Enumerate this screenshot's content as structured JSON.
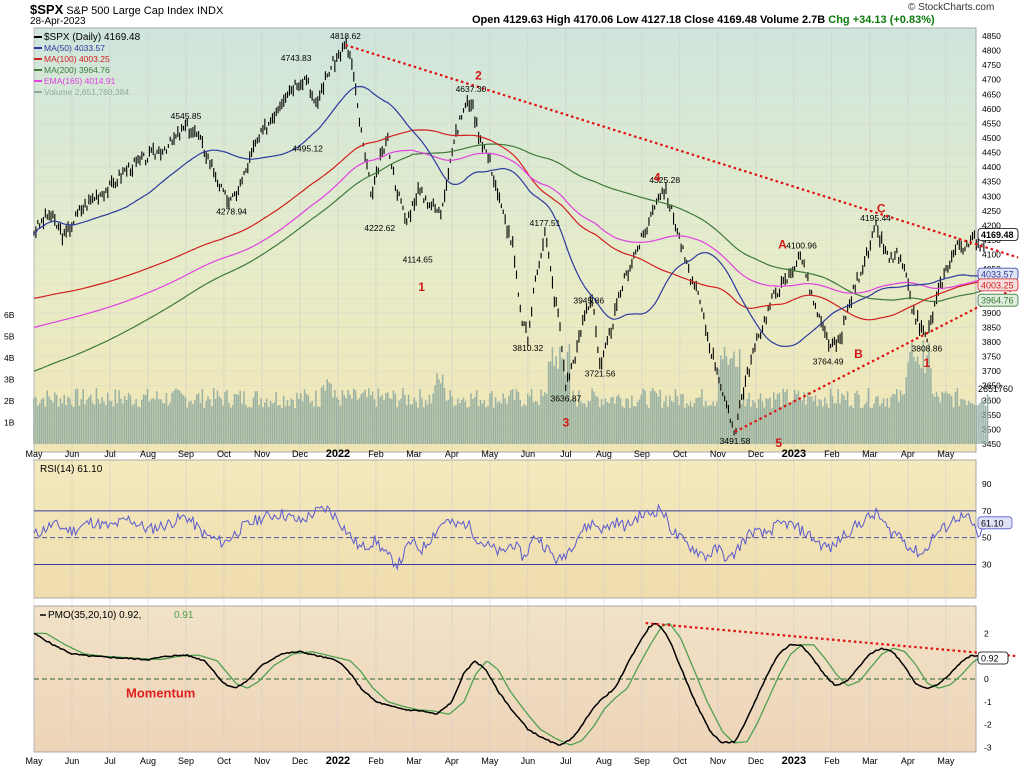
{
  "header": {
    "symbol": "$SPX",
    "name": "S&P 500 Large Cap Index",
    "exchange": "INDX",
    "date": "28-Apr-2023",
    "ohlc": "Open 4129.63  High 4170.06  Low 4127.18  Close 4169.48  Volume 2.7B",
    "chg": "Chg +34.13 (+0.83%)",
    "watermark": "© StockCharts.com"
  },
  "colors": {
    "price_bg": "#dbe9e2",
    "rsi_bg": "#f3e9bd",
    "pmo_bg": "#f0ddc6",
    "price": "#000000",
    "ma50": "#2b3a9e",
    "ma100": "#d21f1f",
    "ma200": "#3e7a3a",
    "ema165": "#e040e0",
    "volume": "#8faba0",
    "trendline": "#e01010",
    "rsi_line": "#5a5ad0",
    "pmo_signal": "#4fa14f",
    "wave_label": "#d01818"
  },
  "chart_data": [
    {
      "type": "line",
      "panel": "price",
      "title": "$SPX S&P 500 Large Cap Index INDX (Daily)",
      "legend": [
        {
          "label": "$SPX (Daily) 4169.48",
          "color": "#000000"
        },
        {
          "label": "MA(50) 4033.57",
          "color": "#2b3a9e"
        },
        {
          "label": "MA(100) 4003.25",
          "color": "#d21f1f"
        },
        {
          "label": "MA(200) 3964.76",
          "color": "#3e7a3a"
        },
        {
          "label": "EMA(165) 4014.91",
          "color": "#e040e0"
        },
        {
          "label": "Volume 2,651,760,384",
          "color": "#8faba0"
        }
      ],
      "x_months": [
        "May",
        "Jun",
        "Jul",
        "Aug",
        "Sep",
        "Oct",
        "Nov",
        "Dec",
        "2022",
        "Feb",
        "Mar",
        "Apr",
        "May",
        "Jun",
        "Jul",
        "Aug",
        "Sep",
        "Oct",
        "Nov",
        "Dec",
        "2023",
        "Feb",
        "Mar",
        "Apr",
        "May"
      ],
      "bold_months": [
        "2022",
        "2023"
      ],
      "ylim": [
        3450,
        4850
      ],
      "yticks": [
        3450,
        3500,
        3550,
        3600,
        3650,
        3700,
        3750,
        3800,
        3850,
        3900,
        3950,
        4000,
        4050,
        4100,
        4150,
        4200,
        4250,
        4300,
        4350,
        4400,
        4450,
        4500,
        4550,
        4600,
        4650,
        4700,
        4750,
        4800,
        4850
      ],
      "volume_ticks": [
        "1B",
        "2B",
        "3B",
        "4B",
        "5B",
        "6B"
      ],
      "volume_last": "2651760",
      "price_keypoints": [
        [
          0,
          4180
        ],
        [
          0.4,
          4240
        ],
        [
          0.8,
          4160
        ],
        [
          1.2,
          4250
        ],
        [
          1.6,
          4300
        ],
        [
          2.0,
          4330
        ],
        [
          2.4,
          4390
        ],
        [
          2.8,
          4420
        ],
        [
          3.2,
          4450
        ],
        [
          3.6,
          4480
        ],
        [
          4.0,
          4540
        ],
        [
          4.3,
          4510
        ],
        [
          4.7,
          4400
        ],
        [
          5.0,
          4300
        ],
        [
          5.2,
          4280
        ],
        [
          5.5,
          4360
        ],
        [
          5.8,
          4470
        ],
        [
          6.3,
          4580
        ],
        [
          6.6,
          4650
        ],
        [
          6.9,
          4690
        ],
        [
          7.2,
          4710
        ],
        [
          7.4,
          4600
        ],
        [
          7.6,
          4680
        ],
        [
          7.8,
          4740
        ],
        [
          8.0,
          4780
        ],
        [
          8.2,
          4819
        ],
        [
          8.35,
          4770
        ],
        [
          8.5,
          4620
        ],
        [
          8.7,
          4440
        ],
        [
          8.9,
          4300
        ],
        [
          9.1,
          4420
        ],
        [
          9.3,
          4500
        ],
        [
          9.5,
          4350
        ],
        [
          9.8,
          4210
        ],
        [
          10.1,
          4320
        ],
        [
          10.4,
          4280
        ],
        [
          10.7,
          4240
        ],
        [
          11.0,
          4460
        ],
        [
          11.3,
          4600
        ],
        [
          11.5,
          4630
        ],
        [
          11.7,
          4520
        ],
        [
          12.0,
          4420
        ],
        [
          12.3,
          4260
        ],
        [
          12.6,
          4130
        ],
        [
          12.8,
          3900
        ],
        [
          13.0,
          3810
        ],
        [
          13.2,
          4020
        ],
        [
          13.45,
          4178
        ],
        [
          13.7,
          3950
        ],
        [
          13.8,
          3900
        ],
        [
          14.0,
          3650
        ],
        [
          14.3,
          3780
        ],
        [
          14.5,
          3900
        ],
        [
          14.7,
          3960
        ],
        [
          14.9,
          3700
        ],
        [
          15.2,
          3850
        ],
        [
          15.5,
          4000
        ],
        [
          15.8,
          4100
        ],
        [
          16.1,
          4180
        ],
        [
          16.4,
          4300
        ],
        [
          16.6,
          4325
        ],
        [
          16.9,
          4200
        ],
        [
          17.2,
          4050
        ],
        [
          17.5,
          3950
        ],
        [
          17.8,
          3780
        ],
        [
          18.0,
          3700
        ],
        [
          18.2,
          3580
        ],
        [
          18.45,
          3492
        ],
        [
          18.6,
          3600
        ],
        [
          18.9,
          3750
        ],
        [
          19.1,
          3830
        ],
        [
          19.3,
          3900
        ],
        [
          19.5,
          3970
        ],
        [
          19.8,
          4010
        ],
        [
          20.0,
          4060
        ],
        [
          20.2,
          4101
        ],
        [
          20.4,
          3990
        ],
        [
          20.6,
          3900
        ],
        [
          20.8,
          3830
        ],
        [
          21.0,
          3780
        ],
        [
          21.2,
          3800
        ],
        [
          21.4,
          3900
        ],
        [
          21.6,
          3990
        ],
        [
          21.8,
          4060
        ],
        [
          22.0,
          4120
        ],
        [
          22.15,
          4195
        ],
        [
          22.35,
          4130
        ],
        [
          22.5,
          4080
        ],
        [
          22.7,
          4100
        ],
        [
          22.9,
          4050
        ],
        [
          23.1,
          3920
        ],
        [
          23.3,
          3860
        ],
        [
          23.5,
          3810
        ],
        [
          23.7,
          3920
        ],
        [
          23.9,
          4010
        ],
        [
          24.1,
          4080
        ],
        [
          24.35,
          4140
        ],
        [
          24.55,
          4120
        ],
        [
          24.75,
          4160
        ],
        [
          24.95,
          4130
        ],
        [
          25.1,
          4169.48
        ]
      ],
      "annotations": [
        {
          "label": "4818.62",
          "x": 8.2,
          "y": 4819,
          "dy": -6
        },
        {
          "label": "4743.83",
          "x": 6.9,
          "y": 4743,
          "dy": -6
        },
        {
          "label": "4545.85",
          "x": 4.0,
          "y": 4545,
          "dy": -6
        },
        {
          "label": "4495.12",
          "x": 7.2,
          "y": 4495,
          "dy": 12
        },
        {
          "label": "4278.94",
          "x": 5.2,
          "y": 4279,
          "dy": 12
        },
        {
          "label": "4637.30",
          "x": 11.5,
          "y": 4637,
          "dy": -6
        },
        {
          "label": "4222.62",
          "x": 9.1,
          "y": 4222,
          "dy": 12
        },
        {
          "label": "4114.65",
          "x": 10.1,
          "y": 4114,
          "dy": 12
        },
        {
          "label": "4177.51",
          "x": 13.45,
          "y": 4178,
          "dy": -6
        },
        {
          "label": "3945.86",
          "x": 14.6,
          "y": 3946,
          "dy": 4
        },
        {
          "label": "3810.32",
          "x": 13.0,
          "y": 3810,
          "dy": 12
        },
        {
          "label": "3721.56",
          "x": 14.9,
          "y": 3722,
          "dy": 12
        },
        {
          "label": "3636.87",
          "x": 14.0,
          "y": 3637,
          "dy": 12
        },
        {
          "label": "4325.28",
          "x": 16.6,
          "y": 4325,
          "dy": -6
        },
        {
          "label": "3491.58",
          "x": 18.45,
          "y": 3492,
          "dy": 12
        },
        {
          "label": "4100.96",
          "x": 20.2,
          "y": 4101,
          "dy": -6
        },
        {
          "label": "3764.49",
          "x": 20.9,
          "y": 3764,
          "dy": 12
        },
        {
          "label": "4195.44",
          "x": 22.15,
          "y": 4195,
          "dy": -6
        },
        {
          "label": "3808.86",
          "x": 23.5,
          "y": 3809,
          "dy": 12
        }
      ],
      "wave_labels": [
        {
          "label": "1",
          "x": 10.2,
          "y": 3975
        },
        {
          "label": "2",
          "x": 11.7,
          "y": 4700
        },
        {
          "label": "3",
          "x": 14.0,
          "y": 3510
        },
        {
          "label": "4",
          "x": 16.4,
          "y": 4350
        },
        {
          "label": "5",
          "x": 19.6,
          "y": 3440
        },
        {
          "label": "A",
          "x": 19.7,
          "y": 4120
        },
        {
          "label": "B",
          "x": 21.7,
          "y": 3745
        },
        {
          "label": "C",
          "x": 22.3,
          "y": 4245
        },
        {
          "label": "1",
          "x": 23.5,
          "y": 3715
        }
      ],
      "trendlines": [
        {
          "from": [
            8.2,
            4819
          ],
          "to": [
            25.9,
            4090
          ]
        },
        {
          "from": [
            18.45,
            3492
          ],
          "to": [
            25.9,
            3990
          ]
        }
      ],
      "price_tags": [
        {
          "label": "4169.48",
          "y": 4169
        },
        {
          "label": "4033.57",
          "y": 4033
        },
        {
          "label": "4003.25",
          "y": 4003
        },
        {
          "label": "3964.76",
          "y": 3964
        }
      ]
    },
    {
      "type": "line",
      "panel": "rsi",
      "legend": "RSI(14) 61.10",
      "ylim": [
        5,
        108
      ],
      "yticks": [
        90,
        70,
        50,
        30
      ],
      "hlines": [
        70,
        50,
        30
      ],
      "last_label": "61.10",
      "rsi_keypoints": [
        [
          0,
          52
        ],
        [
          0.5,
          60
        ],
        [
          1,
          55
        ],
        [
          1.5,
          62
        ],
        [
          2,
          58
        ],
        [
          2.5,
          64
        ],
        [
          3,
          56
        ],
        [
          3.5,
          60
        ],
        [
          4,
          66
        ],
        [
          4.5,
          52
        ],
        [
          5,
          46
        ],
        [
          5.5,
          58
        ],
        [
          6,
          65
        ],
        [
          6.5,
          68
        ],
        [
          7,
          62
        ],
        [
          7.4,
          69
        ],
        [
          7.7,
          72
        ],
        [
          8,
          64
        ],
        [
          8.3,
          52
        ],
        [
          8.6,
          42
        ],
        [
          9,
          48
        ],
        [
          9.3,
          36
        ],
        [
          9.6,
          30
        ],
        [
          9.9,
          47
        ],
        [
          10.2,
          41
        ],
        [
          10.5,
          52
        ],
        [
          10.8,
          63
        ],
        [
          11.1,
          59
        ],
        [
          11.4,
          61
        ],
        [
          11.7,
          48
        ],
        [
          12,
          43
        ],
        [
          12.3,
          38
        ],
        [
          12.6,
          46
        ],
        [
          12.9,
          35
        ],
        [
          13.2,
          52
        ],
        [
          13.5,
          42
        ],
        [
          13.8,
          32
        ],
        [
          14.1,
          42
        ],
        [
          14.4,
          55
        ],
        [
          14.7,
          61
        ],
        [
          15,
          56
        ],
        [
          15.3,
          62
        ],
        [
          15.6,
          58
        ],
        [
          15.9,
          66
        ],
        [
          16.2,
          68
        ],
        [
          16.5,
          72
        ],
        [
          16.8,
          55
        ],
        [
          17.1,
          47
        ],
        [
          17.4,
          41
        ],
        [
          17.7,
          36
        ],
        [
          18,
          42
        ],
        [
          18.3,
          33
        ],
        [
          18.6,
          45
        ],
        [
          18.9,
          55
        ],
        [
          19.2,
          52
        ],
        [
          19.5,
          58
        ],
        [
          19.8,
          61
        ],
        [
          20.1,
          57
        ],
        [
          20.4,
          52
        ],
        [
          20.7,
          45
        ],
        [
          21,
          42
        ],
        [
          21.3,
          52
        ],
        [
          21.6,
          58
        ],
        [
          21.9,
          64
        ],
        [
          22.2,
          68
        ],
        [
          22.5,
          55
        ],
        [
          22.8,
          52
        ],
        [
          23.1,
          41
        ],
        [
          23.4,
          38
        ],
        [
          23.7,
          52
        ],
        [
          24,
          58
        ],
        [
          24.3,
          66
        ],
        [
          24.6,
          64
        ],
        [
          24.9,
          50
        ],
        [
          25.1,
          61.1
        ]
      ]
    },
    {
      "type": "line",
      "panel": "pmo",
      "legend": "PMO(35,20,10) 0.92,",
      "signal_label": "0.91",
      "label": "Momentum",
      "ylim": [
        -3.2,
        3.2
      ],
      "yticks": [
        2,
        1,
        0,
        -1,
        -2,
        -3
      ],
      "last_label": "0.92",
      "trendline": {
        "from": [
          16.1,
          2.45
        ],
        "to": [
          25.9,
          1.0
        ]
      },
      "pmo_keypoints": [
        [
          0,
          2.0
        ],
        [
          0.5,
          1.5
        ],
        [
          1.0,
          1.1
        ],
        [
          1.5,
          1.0
        ],
        [
          2.0,
          0.95
        ],
        [
          2.5,
          0.9
        ],
        [
          3.0,
          0.85
        ],
        [
          3.5,
          1.0
        ],
        [
          4.0,
          1.05
        ],
        [
          4.5,
          0.8
        ],
        [
          5.0,
          -0.2
        ],
        [
          5.3,
          -0.4
        ],
        [
          5.6,
          -0.1
        ],
        [
          6.0,
          0.6
        ],
        [
          6.5,
          1.1
        ],
        [
          7.0,
          1.2
        ],
        [
          7.5,
          1.0
        ],
        [
          8.0,
          0.8
        ],
        [
          8.3,
          0.3
        ],
        [
          8.6,
          -0.4
        ],
        [
          9.0,
          -1.0
        ],
        [
          9.4,
          -1.2
        ],
        [
          9.8,
          -1.35
        ],
        [
          10.2,
          -1.4
        ],
        [
          10.6,
          -1.55
        ],
        [
          11.0,
          -1.0
        ],
        [
          11.3,
          0.2
        ],
        [
          11.6,
          0.8
        ],
        [
          11.9,
          0.4
        ],
        [
          12.2,
          -0.5
        ],
        [
          12.6,
          -1.4
        ],
        [
          13.0,
          -2.2
        ],
        [
          13.4,
          -2.6
        ],
        [
          13.8,
          -2.9
        ],
        [
          14.1,
          -2.7
        ],
        [
          14.4,
          -2.1
        ],
        [
          14.7,
          -1.3
        ],
        [
          15.0,
          -0.8
        ],
        [
          15.3,
          -0.4
        ],
        [
          15.6,
          0.6
        ],
        [
          15.9,
          1.5
        ],
        [
          16.2,
          2.3
        ],
        [
          16.4,
          2.45
        ],
        [
          16.7,
          1.8
        ],
        [
          17.0,
          0.6
        ],
        [
          17.4,
          -1.0
        ],
        [
          17.8,
          -2.3
        ],
        [
          18.1,
          -2.8
        ],
        [
          18.45,
          -2.75
        ],
        [
          18.7,
          -2.0
        ],
        [
          19.0,
          -0.9
        ],
        [
          19.3,
          0.2
        ],
        [
          19.6,
          1.1
        ],
        [
          19.9,
          1.5
        ],
        [
          20.2,
          1.5
        ],
        [
          20.5,
          0.9
        ],
        [
          20.8,
          0.2
        ],
        [
          21.1,
          -0.3
        ],
        [
          21.4,
          -0.1
        ],
        [
          21.7,
          0.5
        ],
        [
          22.0,
          1.1
        ],
        [
          22.3,
          1.35
        ],
        [
          22.6,
          1.2
        ],
        [
          22.9,
          0.6
        ],
        [
          23.2,
          -0.2
        ],
        [
          23.5,
          -0.4
        ],
        [
          23.8,
          -0.25
        ],
        [
          24.1,
          0.2
        ],
        [
          24.4,
          0.75
        ],
        [
          24.7,
          1.05
        ],
        [
          25.0,
          0.95
        ],
        [
          25.1,
          0.92
        ]
      ]
    }
  ]
}
